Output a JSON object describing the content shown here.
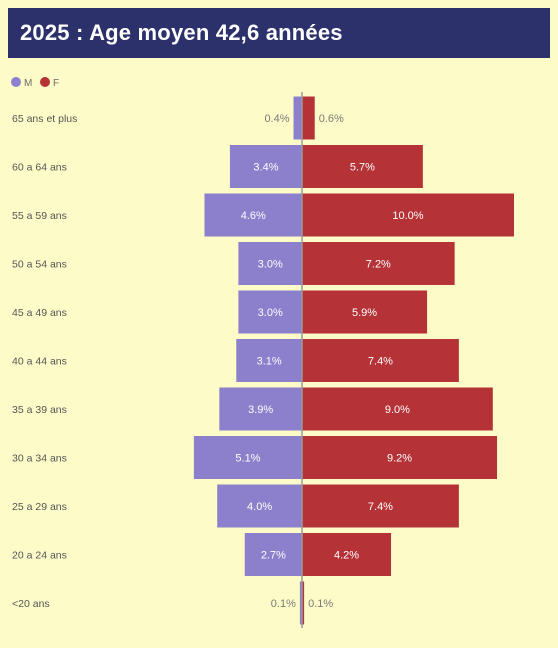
{
  "chart_data": {
    "type": "bar",
    "orientation": "horizontal-diverging",
    "title": "2025 : Age moyen 42,6 années",
    "legend_position": "top-left",
    "categories": [
      "65 ans et plus",
      "60 a 64 ans",
      "55 a 59 ans",
      "50 a 54 ans",
      "45 a 49 ans",
      "40 a 44 ans",
      "35 a 39 ans",
      "30 a 34 ans",
      "25 a 29 ans",
      "20 a 24 ans",
      "<20 ans"
    ],
    "series": [
      {
        "name": "M",
        "color": "#8c7fcc",
        "values": [
          0.4,
          3.4,
          4.6,
          3.0,
          3.0,
          3.1,
          3.9,
          5.1,
          4.0,
          2.7,
          0.1
        ],
        "labels": [
          "0.4%",
          "3.4%",
          "4.6%",
          "3.0%",
          "3.0%",
          "3.1%",
          "3.9%",
          "5.1%",
          "4.0%",
          "2.7%",
          "0.1%"
        ]
      },
      {
        "name": "F",
        "color": "#b53237",
        "values": [
          0.6,
          5.7,
          10.0,
          7.2,
          5.9,
          7.4,
          9.0,
          9.2,
          7.4,
          4.2,
          0.1
        ],
        "labels": [
          "0.6%",
          "5.7%",
          "10.0%",
          "7.2%",
          "5.9%",
          "7.4%",
          "9.0%",
          "9.2%",
          "7.4%",
          "4.2%",
          "0.1%"
        ]
      }
    ],
    "grid": false
  }
}
